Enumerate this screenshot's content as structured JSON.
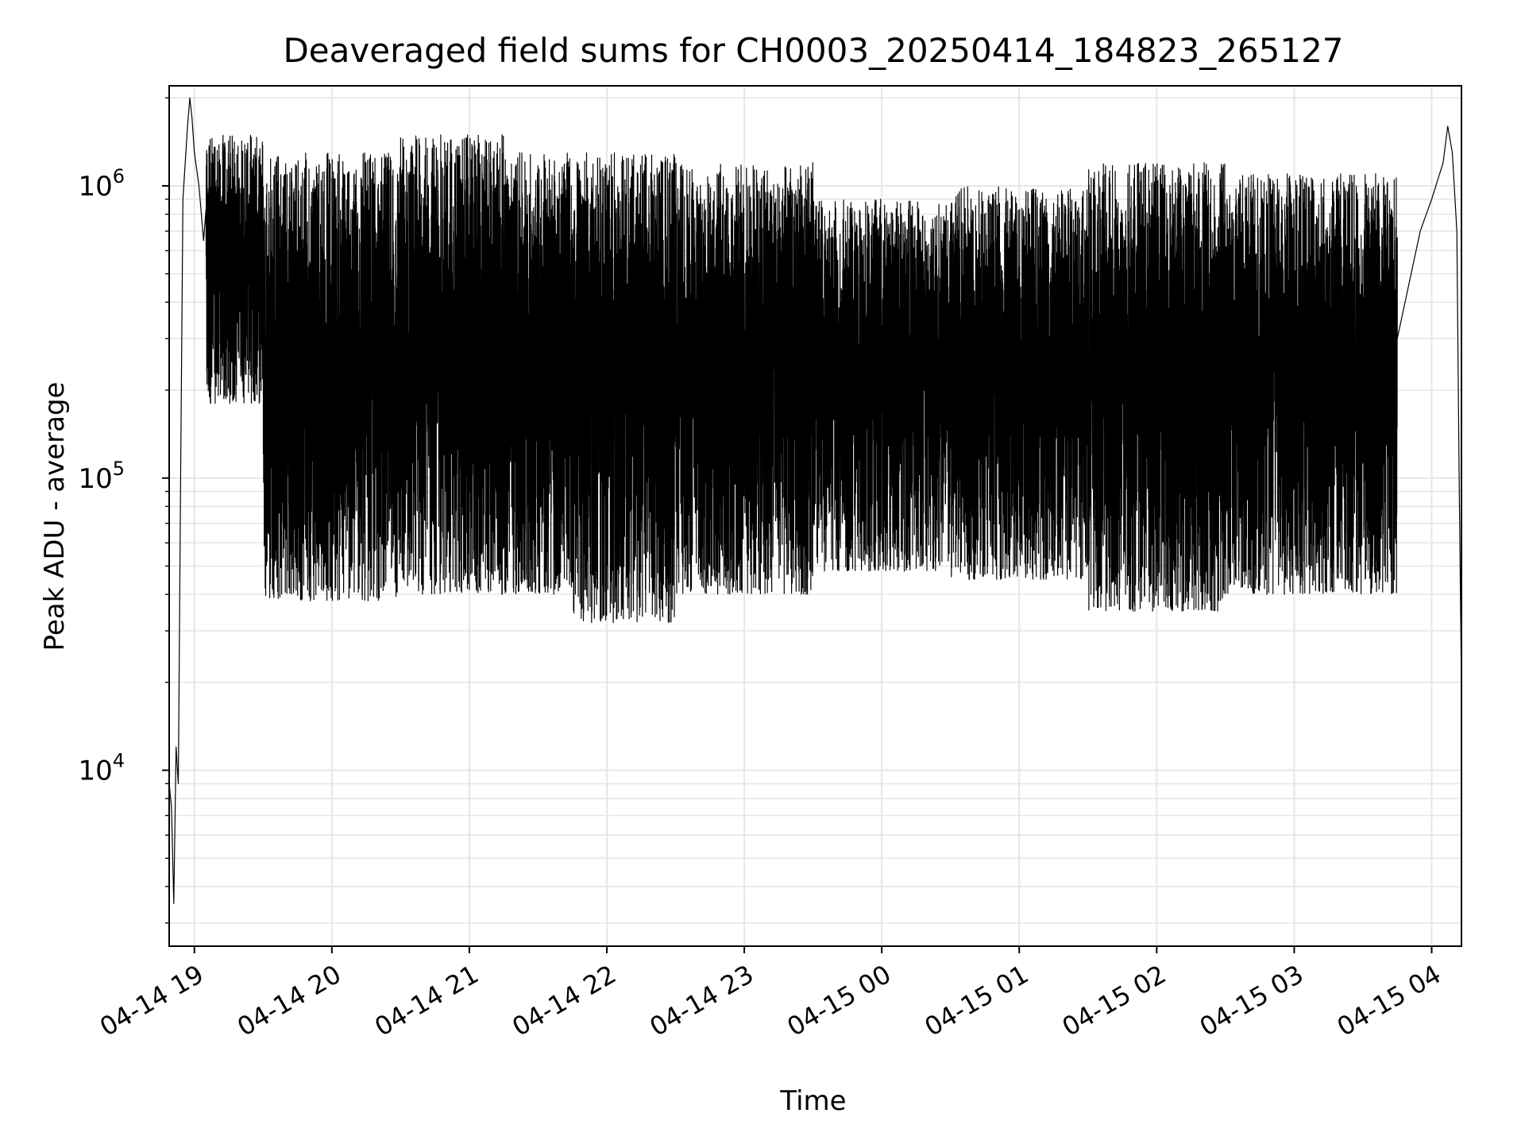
{
  "chart_data": {
    "type": "line",
    "title": "Deaveraged field sums for CH0003_20250414_184823_265127",
    "xlabel": "Time",
    "ylabel": "Peak ADU - average",
    "yscale": "log",
    "ylim": [
      2500,
      2200000
    ],
    "xlim": [
      "2025-04-14 18:49",
      "2025-04-15 04:13"
    ],
    "grid": true,
    "line_color": "#000000",
    "x_ticks": [
      {
        "value": "2025-04-14 19:00",
        "label": "04-14 19"
      },
      {
        "value": "2025-04-14 20:00",
        "label": "04-14 20"
      },
      {
        "value": "2025-04-14 21:00",
        "label": "04-14 21"
      },
      {
        "value": "2025-04-14 22:00",
        "label": "04-14 22"
      },
      {
        "value": "2025-04-14 23:00",
        "label": "04-14 23"
      },
      {
        "value": "2025-04-15 00:00",
        "label": "04-15 00"
      },
      {
        "value": "2025-04-15 01:00",
        "label": "04-15 01"
      },
      {
        "value": "2025-04-15 02:00",
        "label": "04-15 02"
      },
      {
        "value": "2025-04-15 03:00",
        "label": "04-15 03"
      },
      {
        "value": "2025-04-15 04:00",
        "label": "04-15 04"
      }
    ],
    "y_ticks": [
      {
        "value": 10000,
        "base": "10",
        "exp": "4"
      },
      {
        "value": 100000,
        "base": "10",
        "exp": "5"
      },
      {
        "value": 1000000,
        "base": "10",
        "exp": "6"
      }
    ],
    "series": [
      {
        "points": [
          [
            "2025-04-14 18:49",
            9000
          ],
          [
            "2025-04-14 18:50",
            7500
          ],
          [
            "2025-04-14 18:51",
            3500
          ],
          [
            "2025-04-14 18:52",
            12000
          ],
          [
            "2025-04-14 18:53",
            9000
          ],
          [
            "2025-04-14 18:54",
            100000
          ],
          [
            "2025-04-14 18:55",
            900000
          ],
          [
            "2025-04-14 18:57",
            1600000
          ],
          [
            "2025-04-14 18:58",
            2000000
          ],
          [
            "2025-04-14 18:59",
            1700000
          ],
          [
            "2025-04-14 19:00",
            1300000
          ],
          [
            "2025-04-14 19:02",
            1000000
          ],
          [
            "2025-04-14 19:04",
            650000
          ],
          [
            "2025-04-14 19:08",
            600000
          ],
          [
            "2025-04-14 19:15",
            550000
          ],
          [
            "2025-04-14 19:25",
            350000
          ],
          [
            "2025-04-14 19:35",
            150000
          ],
          [
            "2025-04-14 19:45",
            120000
          ],
          [
            "2025-04-14 20:00",
            140000
          ],
          [
            "2025-04-14 20:30",
            180000
          ],
          [
            "2025-04-14 21:00",
            220000
          ],
          [
            "2025-04-14 21:30",
            170000
          ],
          [
            "2025-04-14 22:00",
            150000
          ],
          [
            "2025-04-14 22:30",
            140000
          ],
          [
            "2025-04-14 23:00",
            150000
          ],
          [
            "2025-04-14 23:30",
            160000
          ],
          [
            "2025-04-15 00:00",
            170000
          ],
          [
            "2025-04-15 00:30",
            160000
          ],
          [
            "2025-04-15 01:00",
            140000
          ],
          [
            "2025-04-15 01:30",
            150000
          ],
          [
            "2025-04-15 02:00",
            180000
          ],
          [
            "2025-04-15 02:30",
            160000
          ],
          [
            "2025-04-15 03:00",
            150000
          ],
          [
            "2025-04-15 03:30",
            170000
          ],
          [
            "2025-04-15 03:45",
            300000
          ],
          [
            "2025-04-15 03:55",
            700000
          ],
          [
            "2025-04-15 04:00",
            900000
          ],
          [
            "2025-04-15 04:05",
            1200000
          ],
          [
            "2025-04-15 04:07",
            1600000
          ],
          [
            "2025-04-15 04:09",
            1300000
          ],
          [
            "2025-04-15 04:11",
            700000
          ],
          [
            "2025-04-15 04:12",
            100000
          ],
          [
            "2025-04-15 04:13",
            19000
          ]
        ],
        "envelope": [
          {
            "from": "2025-04-14 19:05",
            "to": "2025-04-14 19:30",
            "min": 180000,
            "max": 1500000
          },
          {
            "from": "2025-04-14 19:30",
            "to": "2025-04-14 20:30",
            "min": 38000,
            "max": 1300000
          },
          {
            "from": "2025-04-14 20:30",
            "to": "2025-04-14 21:15",
            "min": 40000,
            "max": 1500000
          },
          {
            "from": "2025-04-14 21:15",
            "to": "2025-04-14 21:45",
            "min": 40000,
            "max": 1300000
          },
          {
            "from": "2025-04-14 21:45",
            "to": "2025-04-14 22:30",
            "min": 32000,
            "max": 1300000
          },
          {
            "from": "2025-04-14 22:30",
            "to": "2025-04-14 23:30",
            "min": 40000,
            "max": 1200000
          },
          {
            "from": "2025-04-14 23:30",
            "to": "2025-04-15 00:30",
            "min": 48000,
            "max": 900000
          },
          {
            "from": "2025-04-15 00:30",
            "to": "2025-04-15 01:30",
            "min": 45000,
            "max": 1000000
          },
          {
            "from": "2025-04-15 01:30",
            "to": "2025-04-15 02:30",
            "min": 35000,
            "max": 1200000
          },
          {
            "from": "2025-04-15 02:30",
            "to": "2025-04-15 03:45",
            "min": 40000,
            "max": 1100000
          }
        ]
      }
    ]
  }
}
